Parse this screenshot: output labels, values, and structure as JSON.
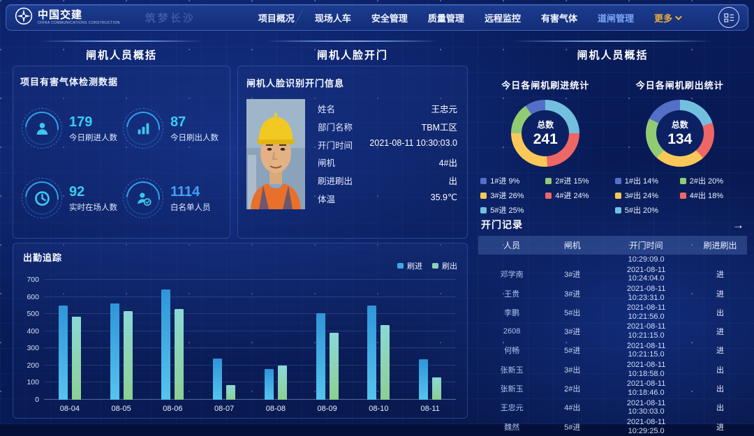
{
  "navbar": {
    "brand": "中国交建",
    "brand_sub": "CHINA COMMUNICATIONS CONSTRUCTION",
    "watermark": "筑梦长沙",
    "items": [
      {
        "label": "项目概况",
        "active": false
      },
      {
        "label": "现场人车",
        "active": false
      },
      {
        "label": "安全管理",
        "active": false
      },
      {
        "label": "质量管理",
        "active": false
      },
      {
        "label": "远程监控",
        "active": false
      },
      {
        "label": "有害气体",
        "active": false
      },
      {
        "label": "道闸管理",
        "active": true
      }
    ],
    "more_label": "更多",
    "active_color": "#7ba4f7",
    "more_color": "#e9ad3a"
  },
  "sections": {
    "left": "闸机人员概括",
    "middle": "闸机人脸开门",
    "right": "闸机人员概括"
  },
  "gas_panel": {
    "title": "项目有害气体检测数据",
    "stats": [
      {
        "icon": "person-icon",
        "value": "179",
        "label": "今日刷进人数",
        "color": "#38cdf3"
      },
      {
        "icon": "bar-chart-icon",
        "value": "87",
        "label": "今日刷出人数",
        "color": "#38cdf3"
      },
      {
        "icon": "clock-icon",
        "value": "92",
        "label": "实时在场人数",
        "color": "#38cdf3"
      },
      {
        "icon": "person-check-icon",
        "value": "1114",
        "label": "白名单人员",
        "color": "#41a0f6"
      }
    ]
  },
  "face_panel": {
    "title": "闸机人脸识别开门信息",
    "photo_alt": "worker-photo",
    "fields": [
      {
        "label": "姓名",
        "value": "王忠元"
      },
      {
        "label": "部门名称",
        "value": "TBM工区"
      },
      {
        "label": "开门时间",
        "value": "2021-08-11 10:30:03.0"
      },
      {
        "label": "闸机",
        "value": "4#出"
      },
      {
        "label": "刷进刷出",
        "value": "出"
      },
      {
        "label": "体温",
        "value": "35.9℃"
      }
    ]
  },
  "records": {
    "title": "开门记录",
    "arrow": "→",
    "columns": [
      "人员",
      "闸机",
      "开门时间",
      "刷进刷出"
    ],
    "partial_time": "10:29:09.0",
    "rows": [
      {
        "name": "邓学南",
        "gate": "3#进",
        "datetime": "2021-08-11 10:24:04.0",
        "dir": "进"
      },
      {
        "name": "王贵",
        "gate": "3#进",
        "datetime": "2021-08-11 10:23:31.0",
        "dir": "进"
      },
      {
        "name": "李鹏",
        "gate": "5#出",
        "datetime": "2021-08-11 10:21:56.0",
        "dir": "出"
      },
      {
        "name": "2608",
        "gate": "3#进",
        "datetime": "2021-08-11 10:21:15.0",
        "dir": "进"
      },
      {
        "name": "何畅",
        "gate": "5#进",
        "datetime": "2021-08-11 10:21:15.0",
        "dir": "进"
      },
      {
        "name": "张新玉",
        "gate": "3#出",
        "datetime": "2021-08-11 10:18:58.0",
        "dir": "出"
      },
      {
        "name": "张新玉",
        "gate": "2#出",
        "datetime": "2021-08-11 10:18:46.0",
        "dir": "出"
      },
      {
        "name": "王忠元",
        "gate": "4#出",
        "datetime": "2021-08-11 10:30:03.0",
        "dir": "出"
      },
      {
        "name": "魏然",
        "gate": "5#进",
        "datetime": "2021-08-11 10:29:25.0",
        "dir": "进"
      }
    ]
  },
  "chart_data": [
    {
      "type": "pie",
      "title": "今日各闸机刷进统计",
      "center_label": "总数",
      "total": 241,
      "labels": [
        "1#进",
        "2#进",
        "3#进",
        "4#进",
        "5#进"
      ],
      "values_pct": [
        9,
        15,
        26,
        24,
        25
      ],
      "colors": [
        "#5470c6",
        "#91cc75",
        "#fac858",
        "#ee6666",
        "#73c0de"
      ],
      "direction": "counterclockwise-from-top",
      "legend_position": "bottom"
    },
    {
      "type": "pie",
      "title": "今日各闸机刷出统计",
      "center_label": "总数",
      "total": 134,
      "labels": [
        "1#出",
        "2#出",
        "3#出",
        "4#出",
        "5#出"
      ],
      "values_pct": [
        14,
        20,
        24,
        18,
        20
      ],
      "colors": [
        "#5470c6",
        "#91cc75",
        "#fac858",
        "#ee6666",
        "#73c0de"
      ],
      "direction": "counterclockwise-from-top",
      "legend_position": "bottom"
    },
    {
      "type": "bar",
      "title": "出勤追踪",
      "categories": [
        "08-04",
        "08-05",
        "08-06",
        "08-07",
        "08-08",
        "08-09",
        "08-10",
        "08-11"
      ],
      "series": [
        {
          "name": "刷进",
          "color": "#41a7e0",
          "values": [
            550,
            560,
            645,
            240,
            180,
            505,
            550,
            235
          ]
        },
        {
          "name": "刷出",
          "color": "#8ad2b4",
          "values": [
            485,
            515,
            530,
            85,
            200,
            390,
            435,
            130
          ]
        }
      ],
      "xlabel": "",
      "ylabel": "",
      "ylim": [
        0,
        700
      ],
      "ytick_step": 100,
      "grid": true,
      "legend_position": "top-right"
    }
  ]
}
